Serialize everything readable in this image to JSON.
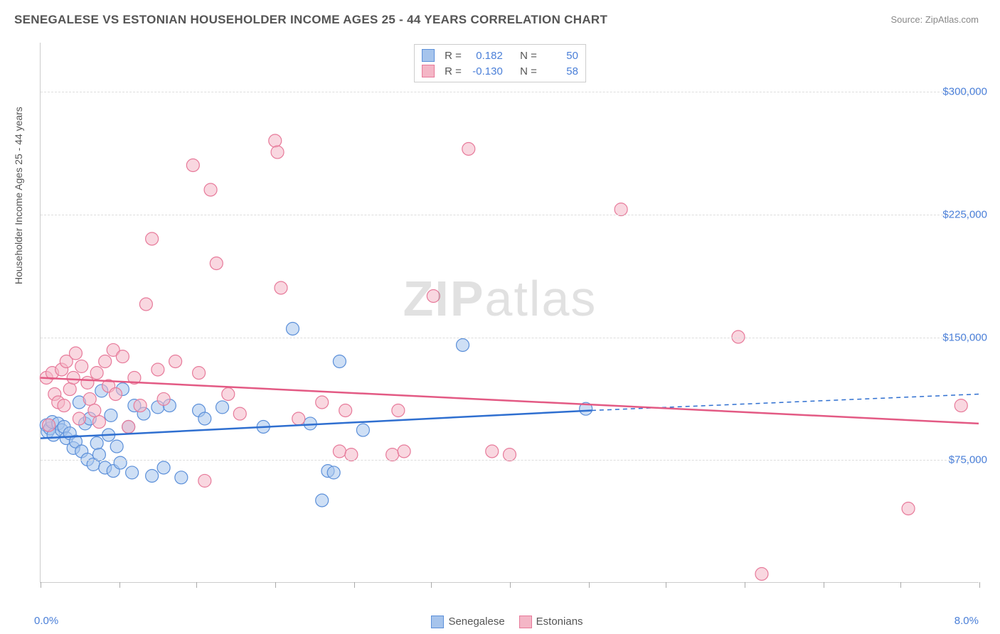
{
  "title": "SENEGALESE VS ESTONIAN HOUSEHOLDER INCOME AGES 25 - 44 YEARS CORRELATION CHART",
  "source": "Source: ZipAtlas.com",
  "ylabel": "Householder Income Ages 25 - 44 years",
  "watermark_bold": "ZIP",
  "watermark_rest": "atlas",
  "chart": {
    "type": "scatter",
    "background_color": "#ffffff",
    "grid_color": "#dddddd",
    "axis_color": "#cccccc",
    "label_color": "#555555",
    "tick_label_color": "#4a7fd8",
    "xlim": [
      0.0,
      8.0
    ],
    "ylim": [
      0,
      330000
    ],
    "xticks": [
      0.0,
      0.67,
      1.33,
      2.0,
      2.67,
      3.33,
      4.0,
      4.67,
      5.33,
      6.0,
      6.67,
      7.33,
      8.0
    ],
    "xtick_labels": {
      "min": "0.0%",
      "max": "8.0%"
    },
    "yticks": [
      75000,
      150000,
      225000,
      300000
    ],
    "ytick_labels": [
      "$75,000",
      "$150,000",
      "$225,000",
      "$300,000"
    ],
    "marker_radius": 9,
    "marker_stroke_width": 1.2,
    "line_width": 2.5,
    "dash_pattern": "6,5",
    "series": [
      {
        "name": "Senegalese",
        "fill_color": "#a6c4ec",
        "fill_opacity": 0.55,
        "stroke_color": "#5b8fd9",
        "line_color": "#2f6fd0",
        "R": "0.182",
        "N": "50",
        "trend": {
          "x1": 0.0,
          "y1": 88000,
          "x2": 4.7,
          "y2": 105000,
          "dash_x2": 8.0,
          "dash_y2": 115000
        },
        "points": [
          [
            0.05,
            96000
          ],
          [
            0.06,
            92000
          ],
          [
            0.08,
            94000
          ],
          [
            0.1,
            98000
          ],
          [
            0.11,
            90000
          ],
          [
            0.15,
            97000
          ],
          [
            0.18,
            93000
          ],
          [
            0.2,
            95000
          ],
          [
            0.22,
            88000
          ],
          [
            0.25,
            91000
          ],
          [
            0.28,
            82000
          ],
          [
            0.3,
            86000
          ],
          [
            0.35,
            80000
          ],
          [
            0.38,
            97000
          ],
          [
            0.4,
            75000
          ],
          [
            0.42,
            100000
          ],
          [
            0.45,
            72000
          ],
          [
            0.48,
            85000
          ],
          [
            0.5,
            78000
          ],
          [
            0.52,
            117000
          ],
          [
            0.55,
            70000
          ],
          [
            0.58,
            90000
          ],
          [
            0.6,
            102000
          ],
          [
            0.62,
            68000
          ],
          [
            0.65,
            83000
          ],
          [
            0.68,
            73000
          ],
          [
            0.7,
            118000
          ],
          [
            0.75,
            95000
          ],
          [
            0.78,
            67000
          ],
          [
            0.8,
            108000
          ],
          [
            0.88,
            103000
          ],
          [
            0.95,
            65000
          ],
          [
            1.0,
            107000
          ],
          [
            1.05,
            70000
          ],
          [
            1.1,
            108000
          ],
          [
            1.2,
            64000
          ],
          [
            1.35,
            105000
          ],
          [
            1.4,
            100000
          ],
          [
            1.55,
            107000
          ],
          [
            1.9,
            95000
          ],
          [
            2.15,
            155000
          ],
          [
            2.3,
            97000
          ],
          [
            2.4,
            50000
          ],
          [
            2.45,
            68000
          ],
          [
            2.5,
            67000
          ],
          [
            2.55,
            135000
          ],
          [
            2.75,
            93000
          ],
          [
            3.6,
            145000
          ],
          [
            4.65,
            106000
          ],
          [
            0.33,
            110000
          ]
        ]
      },
      {
        "name": "Estonians",
        "fill_color": "#f4b6c6",
        "fill_opacity": 0.55,
        "stroke_color": "#e77a9a",
        "line_color": "#e35a84",
        "R": "-0.130",
        "N": "58",
        "trend": {
          "x1": 0.0,
          "y1": 125000,
          "x2": 8.0,
          "y2": 97000,
          "dash_x2": 8.0,
          "dash_y2": 97000
        },
        "points": [
          [
            0.05,
            125000
          ],
          [
            0.07,
            96000
          ],
          [
            0.1,
            128000
          ],
          [
            0.12,
            115000
          ],
          [
            0.15,
            110000
          ],
          [
            0.18,
            130000
          ],
          [
            0.2,
            108000
          ],
          [
            0.22,
            135000
          ],
          [
            0.25,
            118000
          ],
          [
            0.28,
            125000
          ],
          [
            0.3,
            140000
          ],
          [
            0.35,
            132000
          ],
          [
            0.4,
            122000
          ],
          [
            0.42,
            112000
          ],
          [
            0.48,
            128000
          ],
          [
            0.5,
            98000
          ],
          [
            0.55,
            135000
          ],
          [
            0.58,
            120000
          ],
          [
            0.62,
            142000
          ],
          [
            0.7,
            138000
          ],
          [
            0.75,
            95000
          ],
          [
            0.8,
            125000
          ],
          [
            0.9,
            170000
          ],
          [
            0.95,
            210000
          ],
          [
            1.0,
            130000
          ],
          [
            1.05,
            112000
          ],
          [
            1.15,
            135000
          ],
          [
            1.3,
            255000
          ],
          [
            1.35,
            128000
          ],
          [
            1.4,
            62000
          ],
          [
            1.45,
            240000
          ],
          [
            1.5,
            195000
          ],
          [
            1.7,
            103000
          ],
          [
            2.0,
            270000
          ],
          [
            2.02,
            263000
          ],
          [
            2.05,
            180000
          ],
          [
            2.2,
            100000
          ],
          [
            2.4,
            110000
          ],
          [
            2.55,
            80000
          ],
          [
            2.6,
            105000
          ],
          [
            2.65,
            78000
          ],
          [
            3.0,
            78000
          ],
          [
            3.05,
            105000
          ],
          [
            3.1,
            80000
          ],
          [
            3.35,
            175000
          ],
          [
            3.65,
            265000
          ],
          [
            3.85,
            80000
          ],
          [
            4.0,
            78000
          ],
          [
            4.95,
            228000
          ],
          [
            5.95,
            150000
          ],
          [
            6.15,
            5000
          ],
          [
            7.4,
            45000
          ],
          [
            7.85,
            108000
          ],
          [
            0.33,
            100000
          ],
          [
            0.46,
            105000
          ],
          [
            0.64,
            115000
          ],
          [
            0.85,
            108000
          ],
          [
            1.6,
            115000
          ]
        ]
      }
    ],
    "bottom_legend": [
      {
        "label": "Senegalese",
        "fill": "#a6c4ec",
        "stroke": "#5b8fd9"
      },
      {
        "label": "Estonians",
        "fill": "#f4b6c6",
        "stroke": "#e77a9a"
      }
    ]
  }
}
